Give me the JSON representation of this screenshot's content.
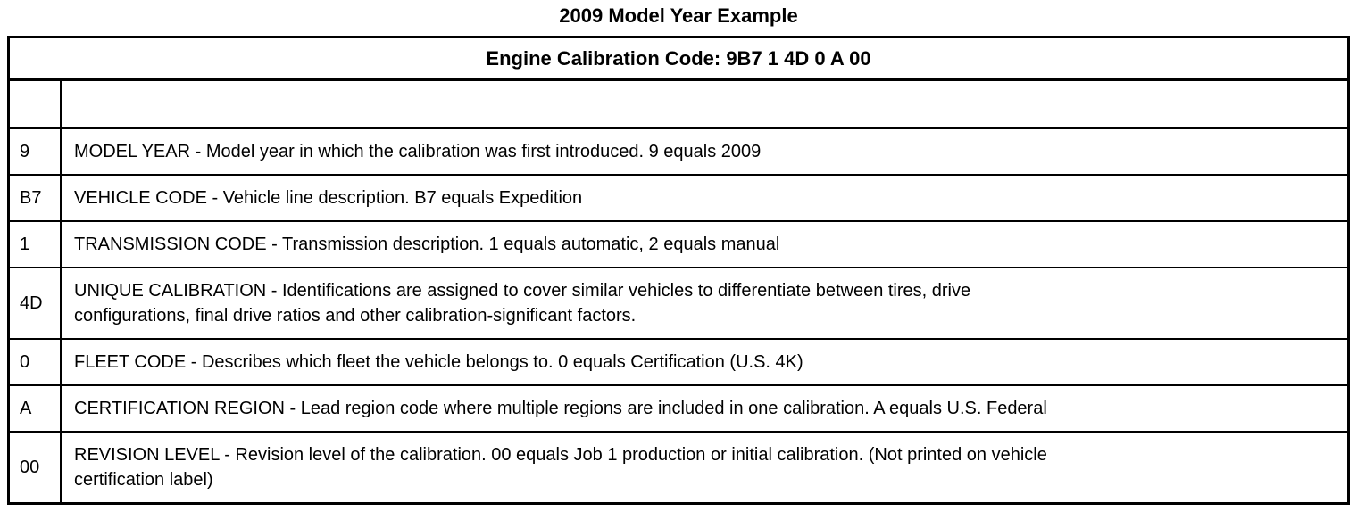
{
  "title": "2009 Model Year Example",
  "table": {
    "header": "Engine Calibration Code: 9B7 1 4D 0 A 00",
    "rows": [
      {
        "code": "",
        "desc": ""
      },
      {
        "code": "9",
        "desc": "MODEL YEAR - Model year in which the calibration was first introduced. 9 equals 2009"
      },
      {
        "code": "B7",
        "desc": "VEHICLE CODE - Vehicle line description. B7 equals Expedition"
      },
      {
        "code": "1",
        "desc": "TRANSMISSION CODE - Transmission description. 1 equals automatic, 2 equals manual"
      },
      {
        "code": "4D",
        "desc": "UNIQUE CALIBRATION - Identifications are assigned to cover similar vehicles to differentiate between tires, drive\nconfigurations, final drive ratios and other calibration-significant factors."
      },
      {
        "code": "0",
        "desc": "FLEET CODE - Describes which fleet the vehicle belongs to. 0 equals Certification (U.S. 4K)"
      },
      {
        "code": "A",
        "desc": "CERTIFICATION REGION - Lead region code where multiple regions are included in one calibration. A equals U.S. Federal"
      },
      {
        "code": "00",
        "desc": "REVISION LEVEL - Revision level of the calibration. 00 equals Job 1 production or initial calibration. (Not printed on vehicle\ncertification label)"
      }
    ]
  },
  "colors": {
    "background": "#ffffff",
    "text": "#000000",
    "border": "#000000"
  }
}
